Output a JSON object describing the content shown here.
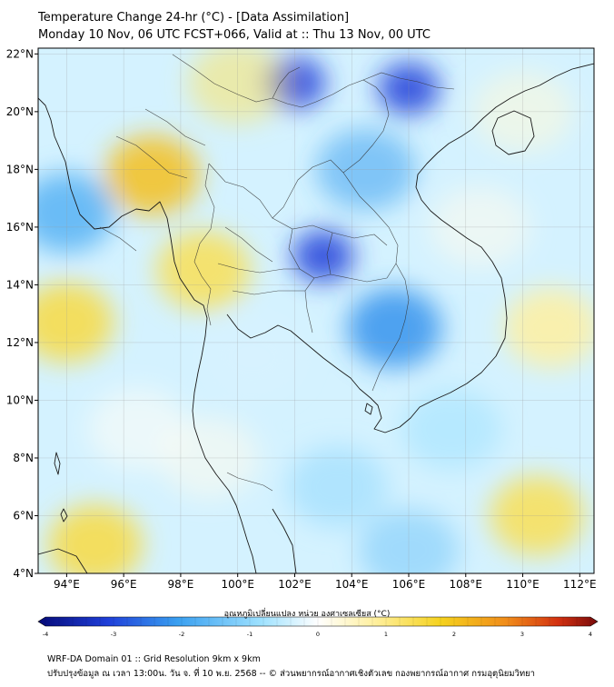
{
  "header": {
    "title_line1": "Temperature Change 24-hr (°C) - [Data Assimilation]",
    "title_line2": "Monday 10 Nov, 06 UTC FCST+066, Valid at :: Thu 13 Nov, 00 UTC"
  },
  "map": {
    "lon_range": [
      93,
      112.5
    ],
    "lat_range": [
      4,
      22.2
    ],
    "lon_ticks": [
      "94°E",
      "96°E",
      "98°E",
      "100°E",
      "102°E",
      "104°E",
      "106°E",
      "108°E",
      "110°E",
      "112°E"
    ],
    "lon_tick_values": [
      94,
      96,
      98,
      100,
      102,
      104,
      106,
      108,
      110,
      112
    ],
    "lat_ticks": [
      "4°N",
      "6°N",
      "8°N",
      "10°N",
      "12°N",
      "14°N",
      "16°N",
      "18°N",
      "20°N",
      "22°N"
    ],
    "lat_tick_values": [
      4,
      6,
      8,
      10,
      12,
      14,
      16,
      18,
      20,
      22
    ],
    "field_features": [
      {
        "name": "warm-myanmar",
        "lon": 97.0,
        "lat": 17.8,
        "value": 1.4
      },
      {
        "name": "warm-gulf-martaban",
        "lon": 98.8,
        "lat": 14.5,
        "value": 0.9
      },
      {
        "name": "warm-andaman-west",
        "lon": 94.0,
        "lat": 12.7,
        "value": 1.0
      },
      {
        "name": "warm-andaman-sw",
        "lon": 95.0,
        "lat": 5.0,
        "value": 1.0
      },
      {
        "name": "warm-scs-south",
        "lon": 110.5,
        "lat": 6.0,
        "value": 0.9
      },
      {
        "name": "warm-scs-east",
        "lon": 111.0,
        "lat": 12.5,
        "value": 0.5
      },
      {
        "name": "cold-ne-thailand",
        "lon": 103.0,
        "lat": 15.0,
        "value": -2.2
      },
      {
        "name": "cold-laos-north",
        "lon": 102.0,
        "lat": 21.0,
        "value": -2.0
      },
      {
        "name": "cold-vietnam-north",
        "lon": 106.0,
        "lat": 20.8,
        "value": -2.0
      },
      {
        "name": "cold-cambodia",
        "lon": 105.5,
        "lat": 12.5,
        "value": -1.3
      },
      {
        "name": "cold-bay-of-bengal",
        "lon": 94.0,
        "lat": 16.5,
        "value": -1.0
      }
    ]
  },
  "colorbar": {
    "label": "อุณหภูมิเปลี่ยนแปลง หน่วย องศาเซลเซียส (°C)",
    "range": [
      -4,
      4
    ],
    "ticks": [
      "-4",
      "-3",
      "-2",
      "-1",
      "0",
      "1",
      "2",
      "3",
      "4"
    ],
    "colors": {
      "min": "#050a78",
      "cold2": "#1f3fd9",
      "cold1": "#3aa0f0",
      "light_cold": "#9fe2ff",
      "zero": "#ffffff",
      "light_warm": "#fff0a0",
      "warm1": "#f5d21e",
      "warm2": "#f08a1a",
      "warm3": "#d23010",
      "max": "#780a0a"
    }
  },
  "footer": {
    "line1": "WRF-DA Domain 01 :: Grid Resolution 9km x 9km",
    "line2": "ปรับปรุงข้อมูล ณ เวลา 13:00น. วัน จ. ที่ 10 พ.ย. 2568 -- © ส่วนพยากรณ์อากาศเชิงตัวเลข กองพยากรณ์อากาศ กรมอุตุนิยมวิทยา"
  }
}
